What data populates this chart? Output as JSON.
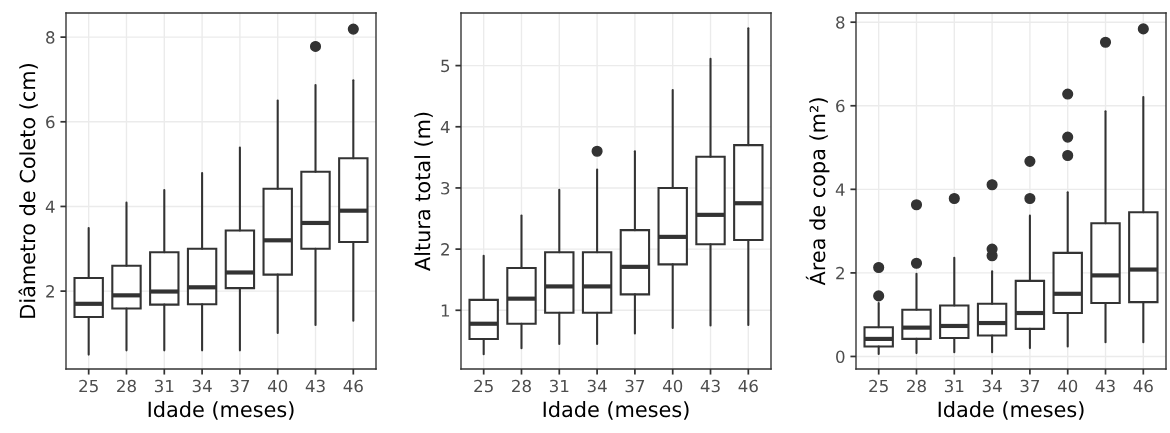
{
  "chart_data": [
    {
      "type": "box",
      "xlabel": "Idade (meses)",
      "ylabel": "Diâmetro de Coleto (cm)",
      "categories": [
        "25",
        "28",
        "31",
        "34",
        "37",
        "40",
        "43",
        "46"
      ],
      "ylim": [
        0.16,
        8.57
      ],
      "yticks": [
        2,
        4,
        6,
        8
      ],
      "grid": true,
      "color": "#333333",
      "boxes": [
        {
          "low": 0.5,
          "q1": 1.39,
          "median": 1.7,
          "q3": 2.31,
          "high": 3.49
        },
        {
          "low": 0.6,
          "q1": 1.59,
          "median": 1.9,
          "q3": 2.6,
          "high": 4.09
        },
        {
          "low": 0.6,
          "q1": 1.68,
          "median": 1.99,
          "q3": 2.92,
          "high": 4.39
        },
        {
          "low": 0.6,
          "q1": 1.69,
          "median": 2.09,
          "q3": 3.0,
          "high": 4.79
        },
        {
          "low": 0.6,
          "q1": 2.07,
          "median": 2.44,
          "q3": 3.43,
          "high": 5.39
        },
        {
          "low": 1.01,
          "q1": 2.39,
          "median": 3.2,
          "q3": 4.42,
          "high": 6.5
        },
        {
          "low": 1.2,
          "q1": 3.0,
          "median": 3.61,
          "q3": 4.82,
          "high": 6.87,
          "outliers": [
            7.78
          ]
        },
        {
          "low": 1.3,
          "q1": 3.16,
          "median": 3.9,
          "q3": 5.14,
          "high": 6.98,
          "outliers": [
            8.19
          ]
        }
      ]
    },
    {
      "type": "box",
      "xlabel": "Idade (meses)",
      "ylabel": "Altura total (m)",
      "categories": [
        "25",
        "28",
        "31",
        "34",
        "37",
        "40",
        "43",
        "46"
      ],
      "ylim": [
        0.04,
        5.86
      ],
      "yticks": [
        1,
        2,
        3,
        4,
        5
      ],
      "grid": true,
      "color": "#333333",
      "boxes": [
        {
          "low": 0.28,
          "q1": 0.53,
          "median": 0.78,
          "q3": 1.17,
          "high": 1.89
        },
        {
          "low": 0.38,
          "q1": 0.78,
          "median": 1.19,
          "q3": 1.69,
          "high": 2.55
        },
        {
          "low": 0.45,
          "q1": 0.96,
          "median": 1.39,
          "q3": 1.95,
          "high": 2.97
        },
        {
          "low": 0.45,
          "q1": 0.96,
          "median": 1.39,
          "q3": 1.95,
          "high": 3.3,
          "outliers": [
            3.6
          ]
        },
        {
          "low": 0.62,
          "q1": 1.26,
          "median": 1.71,
          "q3": 2.31,
          "high": 3.6
        },
        {
          "low": 0.71,
          "q1": 1.75,
          "median": 2.2,
          "q3": 3.0,
          "high": 4.6
        },
        {
          "low": 0.75,
          "q1": 2.08,
          "median": 2.56,
          "q3": 3.51,
          "high": 5.11
        },
        {
          "low": 0.76,
          "q1": 2.15,
          "median": 2.75,
          "q3": 3.7,
          "high": 5.61
        }
      ]
    },
    {
      "type": "box",
      "xlabel": "Idade (meses)",
      "ylabel": "Área de copa (m²)",
      "categories": [
        "25",
        "28",
        "31",
        "34",
        "37",
        "40",
        "43",
        "46"
      ],
      "ylim": [
        -0.3,
        8.22
      ],
      "yticks": [
        0,
        2,
        4,
        6,
        8
      ],
      "grid": true,
      "color": "#333333",
      "boxes": [
        {
          "low": 0.06,
          "q1": 0.24,
          "median": 0.42,
          "q3": 0.7,
          "high": 1.28,
          "outliers": [
            1.45,
            2.13
          ]
        },
        {
          "low": 0.08,
          "q1": 0.42,
          "median": 0.69,
          "q3": 1.12,
          "high": 1.98,
          "outliers": [
            2.23,
            3.63
          ]
        },
        {
          "low": 0.1,
          "q1": 0.44,
          "median": 0.73,
          "q3": 1.22,
          "high": 2.36,
          "outliers": [
            3.78
          ]
        },
        {
          "low": 0.1,
          "q1": 0.5,
          "median": 0.8,
          "q3": 1.26,
          "high": 2.04,
          "outliers": [
            2.41,
            2.57,
            4.11
          ]
        },
        {
          "low": 0.2,
          "q1": 0.66,
          "median": 1.04,
          "q3": 1.81,
          "high": 3.37,
          "outliers": [
            3.78,
            4.67
          ]
        },
        {
          "low": 0.24,
          "q1": 1.04,
          "median": 1.5,
          "q3": 2.48,
          "high": 3.93,
          "outliers": [
            4.81,
            5.25,
            6.28
          ]
        },
        {
          "low": 0.34,
          "q1": 1.28,
          "median": 1.94,
          "q3": 3.19,
          "high": 5.87,
          "outliers": [
            7.52
          ]
        },
        {
          "low": 0.34,
          "q1": 1.3,
          "median": 2.08,
          "q3": 3.45,
          "high": 6.21,
          "outliers": [
            7.84
          ]
        }
      ]
    }
  ]
}
